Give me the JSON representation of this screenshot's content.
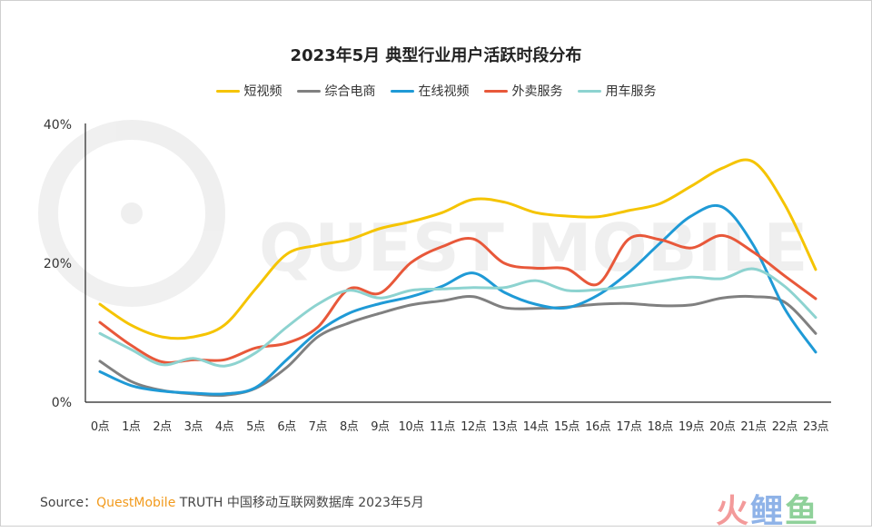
{
  "chart_data": {
    "type": "line",
    "title": "2023年5月 典型行业用户活跃时段分布",
    "categories": [
      "0点",
      "1点",
      "2点",
      "3点",
      "4点",
      "5点",
      "6点",
      "7点",
      "8点",
      "9点",
      "10点",
      "11点",
      "12点",
      "13点",
      "14点",
      "15点",
      "16点",
      "17点",
      "18点",
      "19点",
      "20点",
      "21点",
      "22点",
      "23点"
    ],
    "yticks": [
      "0%",
      "20%",
      "40%"
    ],
    "ylim": [
      0,
      40
    ],
    "yunit": "%",
    "grid": false,
    "legend_position": "top",
    "series": [
      {
        "name": "短视频",
        "color": "#f5c400",
        "values": [
          14.1,
          11.1,
          9.4,
          9.4,
          11.1,
          16.3,
          21.3,
          22.6,
          23.4,
          25.0,
          26.0,
          27.3,
          29.2,
          28.8,
          27.3,
          26.8,
          26.7,
          27.6,
          28.6,
          31.1,
          33.7,
          34.6,
          28.5,
          19.1
        ]
      },
      {
        "name": "综合电商",
        "color": "#808080",
        "values": [
          5.9,
          3.0,
          1.7,
          1.2,
          1.0,
          2.0,
          5.0,
          9.4,
          11.4,
          12.8,
          14.0,
          14.6,
          15.2,
          13.6,
          13.5,
          13.7,
          14.1,
          14.2,
          13.9,
          14.0,
          15.0,
          15.2,
          14.4,
          9.9
        ]
      },
      {
        "name": "在线视频",
        "color": "#1f9ad6",
        "values": [
          4.4,
          2.4,
          1.6,
          1.3,
          1.2,
          2.1,
          6.1,
          10.1,
          12.8,
          14.2,
          15.2,
          16.7,
          18.6,
          15.8,
          14.1,
          13.6,
          15.4,
          18.7,
          22.9,
          26.8,
          28.1,
          22.6,
          13.5,
          7.2
        ]
      },
      {
        "name": "外卖服务",
        "color": "#e8583a",
        "values": [
          11.5,
          8.2,
          5.8,
          6.1,
          6.1,
          7.8,
          8.5,
          10.8,
          16.3,
          15.7,
          20.1,
          22.4,
          23.5,
          20.0,
          19.3,
          19.2,
          17.0,
          23.5,
          23.4,
          22.2,
          24.0,
          21.6,
          18.2,
          14.9
        ]
      },
      {
        "name": "用车服务",
        "color": "#8dd3d0",
        "values": [
          9.9,
          7.6,
          5.4,
          6.3,
          5.2,
          7.1,
          10.8,
          14.1,
          16.1,
          15.0,
          16.1,
          16.3,
          16.5,
          16.5,
          17.5,
          16.1,
          16.2,
          16.7,
          17.4,
          18.0,
          17.8,
          19.2,
          16.7,
          12.2
        ]
      }
    ]
  },
  "watermark": "QUEST MOBILE",
  "footer": {
    "source_label": "Source：",
    "source_brand": "QuestMobile",
    "source_text": " TRUTH 中国移动互联网数据库 2023年5月"
  },
  "logo": {
    "text": "火鲤鱼",
    "colors": [
      "#f39a9a",
      "#8fb3e8",
      "#8fd19a"
    ]
  }
}
